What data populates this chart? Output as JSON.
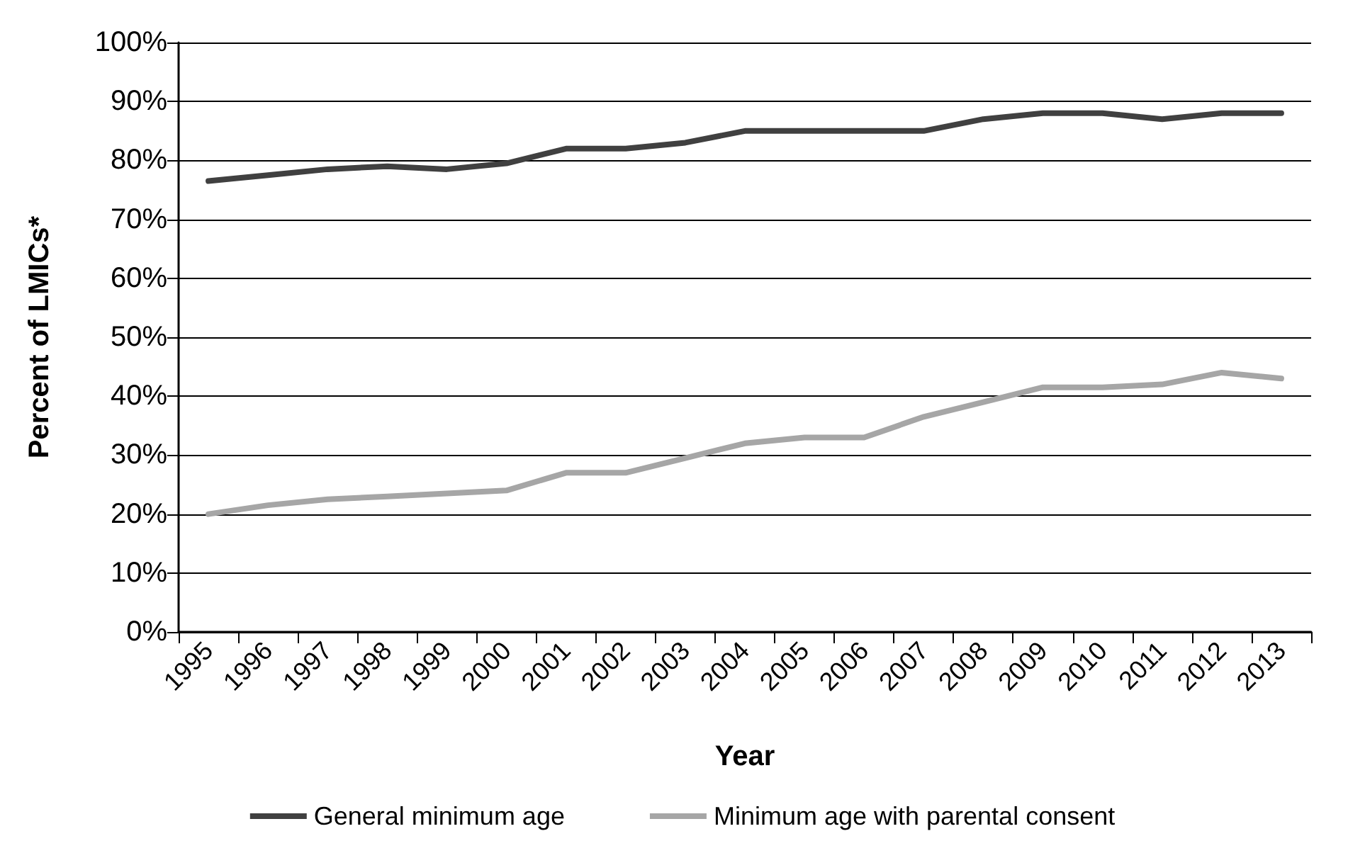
{
  "chart_data": {
    "type": "line",
    "xlabel": "Year",
    "ylabel": "Percent of LMICs*",
    "categories": [
      "1995",
      "1996",
      "1997",
      "1998",
      "1999",
      "2000",
      "2001",
      "2002",
      "2003",
      "2004",
      "2005",
      "2006",
      "2007",
      "2008",
      "2009",
      "2010",
      "2011",
      "2012",
      "2013"
    ],
    "series": [
      {
        "name": "General minimum age",
        "color": "#404040",
        "values": [
          76.5,
          77.5,
          78.5,
          79,
          78.5,
          79.5,
          82,
          82,
          83,
          85,
          85,
          85,
          85,
          87,
          88,
          88,
          87,
          88,
          88
        ]
      },
      {
        "name": "Minimum age with parental consent",
        "color": "#a6a6a6",
        "values": [
          20,
          21.5,
          22.5,
          23,
          23.5,
          24,
          27,
          27,
          29.5,
          32,
          33,
          33,
          36.5,
          39,
          41.5,
          41.5,
          42,
          44,
          43
        ]
      }
    ],
    "ylim": [
      0,
      100
    ],
    "yticks": [
      {
        "value": 0,
        "label": "0%"
      },
      {
        "value": 10,
        "label": "10%"
      },
      {
        "value": 20,
        "label": "20%"
      },
      {
        "value": 30,
        "label": "30%"
      },
      {
        "value": 40,
        "label": "40%"
      },
      {
        "value": 50,
        "label": "50%"
      },
      {
        "value": 60,
        "label": "60%"
      },
      {
        "value": 70,
        "label": "70%"
      },
      {
        "value": 80,
        "label": "80%"
      },
      {
        "value": 90,
        "label": "90%"
      },
      {
        "value": 100,
        "label": "100%"
      }
    ],
    "grid": "y",
    "legend": "bottom",
    "marker": "none",
    "line_style": "solid"
  }
}
